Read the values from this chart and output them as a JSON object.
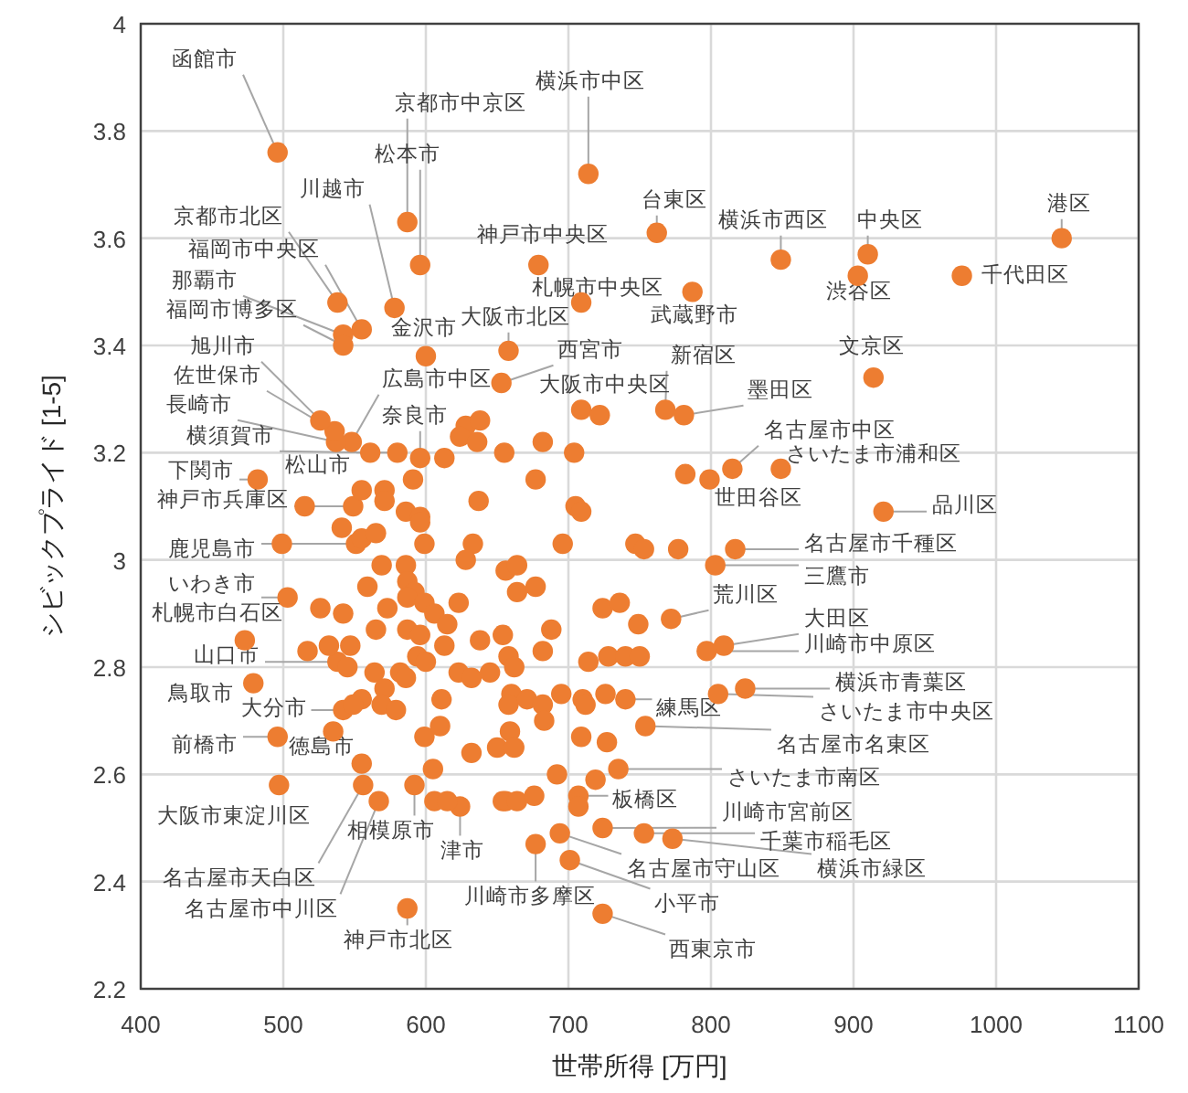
{
  "chart_data": {
    "type": "scatter",
    "xlabel": "世帯所得 [万円]",
    "ylabel": "シビックプライド [1-5]",
    "xlim": [
      400,
      1100
    ],
    "xticks": [
      400,
      500,
      600,
      700,
      800,
      900,
      1000,
      1100
    ],
    "ylim": [
      2.2,
      4
    ],
    "yticks": [
      {
        "value": 2.2,
        "label": "2.2"
      },
      {
        "value": 2.4,
        "label": "2.4"
      },
      {
        "value": 2.6,
        "label": "2.6"
      },
      {
        "value": 2.8,
        "label": "2.8"
      },
      3,
      {
        "value": 3.2,
        "label": "3.2"
      },
      {
        "value": 3.4,
        "label": "3.4"
      },
      {
        "value": 3.6,
        "label": "3.6"
      },
      {
        "value": 3.8,
        "label": "3.8"
      },
      4
    ],
    "grid": true,
    "marker": "circle",
    "series": [
      {
        "color": "#ed7d31",
        "x": [
          496,
          587,
          714,
          596,
          578,
          538,
          555,
          542,
          542,
          600,
          658,
          679,
          709,
          787,
          762,
          849,
          910,
          903,
          1046,
          976,
          914,
          653,
          548,
          537,
          536,
          526,
          561,
          596,
          709,
          768,
          781,
          482,
          580,
          549,
          815,
          849,
          799,
          921,
          551,
          817,
          803,
          503,
          772,
          473,
          809,
          797,
          538,
          824,
          805,
          479,
          542,
          740,
          496,
          555,
          754,
          735,
          707,
          497,
          724,
          592,
          753,
          624,
          773,
          694,
          556,
          701,
          677,
          567,
          724,
          587,
          628,
          638,
          624,
          636,
          613,
          555,
          571,
          571,
          591,
          586,
          596,
          637,
          515,
          655,
          682,
          704,
          677,
          705,
          709,
          782,
          722,
          596,
          599,
          541,
          555,
          565,
          499,
          569,
          586,
          587,
          559,
          592,
          573,
          526,
          542,
          587,
          599,
          606,
          615,
          565,
          587,
          596,
          613,
          623,
          633,
          628,
          638,
          654,
          517,
          532,
          547,
          545,
          564,
          594,
          600,
          582,
          586,
          623,
          632,
          645,
          571,
          611,
          555,
          549,
          569,
          579,
          535,
          599,
          610,
          632,
          650,
          605,
          606,
          615,
          654,
          696,
          747,
          753,
          777,
          656,
          664,
          664,
          677,
          724,
          736,
          749,
          688,
          682,
          658,
          662,
          714,
          728,
          740,
          750,
          660,
          658,
          671,
          682,
          695,
          710,
          712,
          726,
          683,
          659,
          662,
          709,
          727,
          692,
          719,
          656,
          664,
          676,
          707
        ],
        "values": [
          3.76,
          3.63,
          3.72,
          3.55,
          3.47,
          3.48,
          3.43,
          3.42,
          3.4,
          3.38,
          3.39,
          3.55,
          3.48,
          3.5,
          3.61,
          3.56,
          3.57,
          3.53,
          3.6,
          3.53,
          3.34,
          3.33,
          3.22,
          3.22,
          3.24,
          3.26,
          3.2,
          3.19,
          3.28,
          3.28,
          3.27,
          3.15,
          3.2,
          3.1,
          3.17,
          3.17,
          3.15,
          3.09,
          3.03,
          3.02,
          2.99,
          2.93,
          2.89,
          2.85,
          2.84,
          2.83,
          2.81,
          2.76,
          2.75,
          2.77,
          2.72,
          2.74,
          2.67,
          2.62,
          2.69,
          2.61,
          2.56,
          2.58,
          2.5,
          2.58,
          2.49,
          2.54,
          2.48,
          2.49,
          2.58,
          2.44,
          2.47,
          2.55,
          2.34,
          2.35,
          3.25,
          3.26,
          3.23,
          3.22,
          3.19,
          3.13,
          3.13,
          3.11,
          3.15,
          3.09,
          3.08,
          3.11,
          3.1,
          3.2,
          3.22,
          3.2,
          3.15,
          3.1,
          3.09,
          3.16,
          3.27,
          3.07,
          3.03,
          3.06,
          3.04,
          3.05,
          3.03,
          2.99,
          2.99,
          2.96,
          2.95,
          2.94,
          2.91,
          2.91,
          2.9,
          2.93,
          2.92,
          2.9,
          2.88,
          2.87,
          2.87,
          2.86,
          2.84,
          2.92,
          3.03,
          3.0,
          2.85,
          2.86,
          2.83,
          2.84,
          2.84,
          2.8,
          2.79,
          2.82,
          2.81,
          2.79,
          2.78,
          2.79,
          2.78,
          2.79,
          2.76,
          2.74,
          2.74,
          2.73,
          2.73,
          2.72,
          2.68,
          2.67,
          2.69,
          2.64,
          2.65,
          2.61,
          2.55,
          2.55,
          2.55,
          3.03,
          3.03,
          3.02,
          3.02,
          2.98,
          2.99,
          2.94,
          2.95,
          2.91,
          2.92,
          2.88,
          2.87,
          2.83,
          2.82,
          2.8,
          2.81,
          2.82,
          2.82,
          2.82,
          2.75,
          2.73,
          2.74,
          2.73,
          2.75,
          2.74,
          2.73,
          2.75,
          2.7,
          2.68,
          2.65,
          2.67,
          2.66,
          2.6,
          2.59,
          2.55,
          2.55,
          2.56,
          2.54
        ]
      }
    ],
    "annotations": [
      {
        "text": "函館市",
        "x": 496,
        "y": 3.76
      },
      {
        "text": "京都市中京区",
        "x": 587,
        "y": 3.63
      },
      {
        "text": "横浜市中区",
        "x": 714,
        "y": 3.72
      },
      {
        "text": "松本市",
        "x": 596,
        "y": 3.55
      },
      {
        "text": "川越市",
        "x": 578,
        "y": 3.47
      },
      {
        "text": "京都市北区",
        "x": 538,
        "y": 3.48
      },
      {
        "text": "福岡市中央区",
        "x": 555,
        "y": 3.43
      },
      {
        "text": "那覇市",
        "x": 542,
        "y": 3.42
      },
      {
        "text": "福岡市博多区",
        "x": 542,
        "y": 3.4
      },
      {
        "text": "金沢市",
        "x": 600,
        "y": 3.38
      },
      {
        "text": "大阪市北区",
        "x": 658,
        "y": 3.39
      },
      {
        "text": "神戸市中央区",
        "x": 679,
        "y": 3.55
      },
      {
        "text": "札幌市中央区",
        "x": 709,
        "y": 3.48
      },
      {
        "text": "武蔵野市",
        "x": 787,
        "y": 3.5
      },
      {
        "text": "台東区",
        "x": 762,
        "y": 3.61
      },
      {
        "text": "横浜市西区",
        "x": 849,
        "y": 3.56
      },
      {
        "text": "中央区",
        "x": 910,
        "y": 3.57
      },
      {
        "text": "渋谷区",
        "x": 903,
        "y": 3.53
      },
      {
        "text": "港区",
        "x": 1046,
        "y": 3.6
      },
      {
        "text": "千代田区",
        "x": 976,
        "y": 3.53
      },
      {
        "text": "文京区",
        "x": 914,
        "y": 3.34
      },
      {
        "text": "西宮市",
        "x": 653,
        "y": 3.33
      },
      {
        "text": "広島市中区",
        "x": 548,
        "y": 3.22
      },
      {
        "text": "長崎市",
        "x": 537,
        "y": 3.22
      },
      {
        "text": "佐世保市",
        "x": 536,
        "y": 3.24
      },
      {
        "text": "旭川市",
        "x": 526,
        "y": 3.26
      },
      {
        "text": "横須賀市",
        "x": 561,
        "y": 3.2
      },
      {
        "text": "奈良市",
        "x": 596,
        "y": 3.19
      },
      {
        "text": "大阪市中央区",
        "x": 709,
        "y": 3.28
      },
      {
        "text": "新宿区",
        "x": 768,
        "y": 3.28
      },
      {
        "text": "墨田区",
        "x": 781,
        "y": 3.27
      },
      {
        "text": "下関市",
        "x": 482,
        "y": 3.15
      },
      {
        "text": "松山市",
        "x": 580,
        "y": 3.2
      },
      {
        "text": "神戸市兵庫区",
        "x": 549,
        "y": 3.1
      },
      {
        "text": "名古屋市中区",
        "x": 815,
        "y": 3.17
      },
      {
        "text": "さいたま市浦和区",
        "x": 849,
        "y": 3.17
      },
      {
        "text": "世田谷区",
        "x": 799,
        "y": 3.15
      },
      {
        "text": "品川区",
        "x": 921,
        "y": 3.09
      },
      {
        "text": "鹿児島市",
        "x": 551,
        "y": 3.03
      },
      {
        "text": "名古屋市千種区",
        "x": 817,
        "y": 3.02
      },
      {
        "text": "三鷹市",
        "x": 803,
        "y": 2.99
      },
      {
        "text": "いわき市",
        "x": 503,
        "y": 2.93
      },
      {
        "text": "荒川区",
        "x": 772,
        "y": 2.89
      },
      {
        "text": "札幌市白石区",
        "x": 473,
        "y": 2.85
      },
      {
        "text": "大田区",
        "x": 809,
        "y": 2.84
      },
      {
        "text": "川崎市中原区",
        "x": 797,
        "y": 2.83
      },
      {
        "text": "山口市",
        "x": 538,
        "y": 2.81
      },
      {
        "text": "横浜市青葉区",
        "x": 824,
        "y": 2.76
      },
      {
        "text": "さいたま市中央区",
        "x": 805,
        "y": 2.75
      },
      {
        "text": "鳥取市",
        "x": 479,
        "y": 2.77
      },
      {
        "text": "大分市",
        "x": 542,
        "y": 2.72
      },
      {
        "text": "練馬区",
        "x": 740,
        "y": 2.74
      },
      {
        "text": "前橋市",
        "x": 496,
        "y": 2.67
      },
      {
        "text": "徳島市",
        "x": 555,
        "y": 2.62
      },
      {
        "text": "名古屋市名東区",
        "x": 754,
        "y": 2.69
      },
      {
        "text": "さいたま市南区",
        "x": 735,
        "y": 2.61
      },
      {
        "text": "板橋区",
        "x": 707,
        "y": 2.56
      },
      {
        "text": "大阪市東淀川区",
        "x": 497,
        "y": 2.58
      },
      {
        "text": "川崎市宮前区",
        "x": 724,
        "y": 2.5
      },
      {
        "text": "相模原市",
        "x": 592,
        "y": 2.58
      },
      {
        "text": "千葉市稲毛区",
        "x": 753,
        "y": 2.49
      },
      {
        "text": "津市",
        "x": 624,
        "y": 2.54
      },
      {
        "text": "横浜市緑区",
        "x": 773,
        "y": 2.48
      },
      {
        "text": "名古屋市守山区",
        "x": 694,
        "y": 2.49
      },
      {
        "text": "名古屋市天白区",
        "x": 556,
        "y": 2.58
      },
      {
        "text": "小平市",
        "x": 701,
        "y": 2.44
      },
      {
        "text": "川崎市多摩区",
        "x": 677,
        "y": 2.47
      },
      {
        "text": "名古屋市中川区",
        "x": 567,
        "y": 2.55
      },
      {
        "text": "西東京市",
        "x": 724,
        "y": 2.34
      },
      {
        "text": "神戸市北区",
        "x": 587,
        "y": 2.35
      }
    ]
  }
}
